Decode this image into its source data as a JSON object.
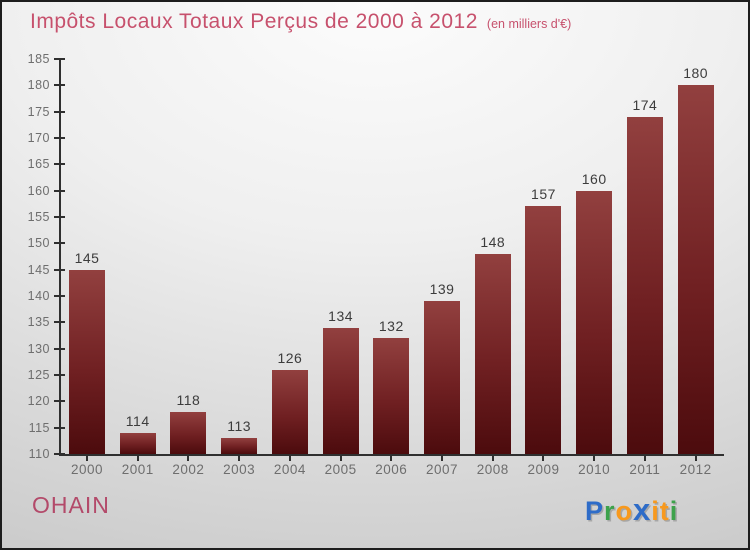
{
  "header": {
    "title": "Impôts Locaux Totaux Perçus de 2000 à 2012",
    "subtitle": "(en milliers d'€)",
    "title_color": "#c7516d"
  },
  "chart_data": {
    "type": "bar",
    "title": "Impôts Locaux Totaux Perçus de 2000 à 2012",
    "subtitle": "(en milliers d'€)",
    "categories": [
      "2000",
      "2001",
      "2002",
      "2003",
      "2004",
      "2005",
      "2006",
      "2007",
      "2008",
      "2009",
      "2010",
      "2011",
      "2012"
    ],
    "values": [
      145,
      114,
      118,
      113,
      126,
      134,
      132,
      139,
      148,
      157,
      160,
      174,
      180
    ],
    "xlabel": "",
    "ylabel": "",
    "ylim": [
      110,
      185
    ],
    "ytick_step": 5,
    "grid": false,
    "legend": false,
    "bar_color_top": "#92403f",
    "bar_color_bottom": "#4c0b0d",
    "axis_color": "#2f2f2f",
    "tick_label_color": "#6e6e6e",
    "value_label_color": "#3c3c3c"
  },
  "footer": {
    "location": "OHAIN",
    "location_color": "#b34a6a",
    "logo": {
      "text": "Proxiti",
      "letters": [
        {
          "ch": "P",
          "color": "#2e6cc8"
        },
        {
          "ch": "r",
          "color": "#3da24b"
        },
        {
          "ch": "o",
          "color": "#f8991d"
        },
        {
          "ch": "x",
          "color": "#2e6cc8"
        },
        {
          "ch": "i",
          "color": "#f8991d"
        },
        {
          "ch": "t",
          "color": "#f8991d"
        },
        {
          "ch": "i",
          "color": "#3da24b"
        }
      ]
    }
  }
}
